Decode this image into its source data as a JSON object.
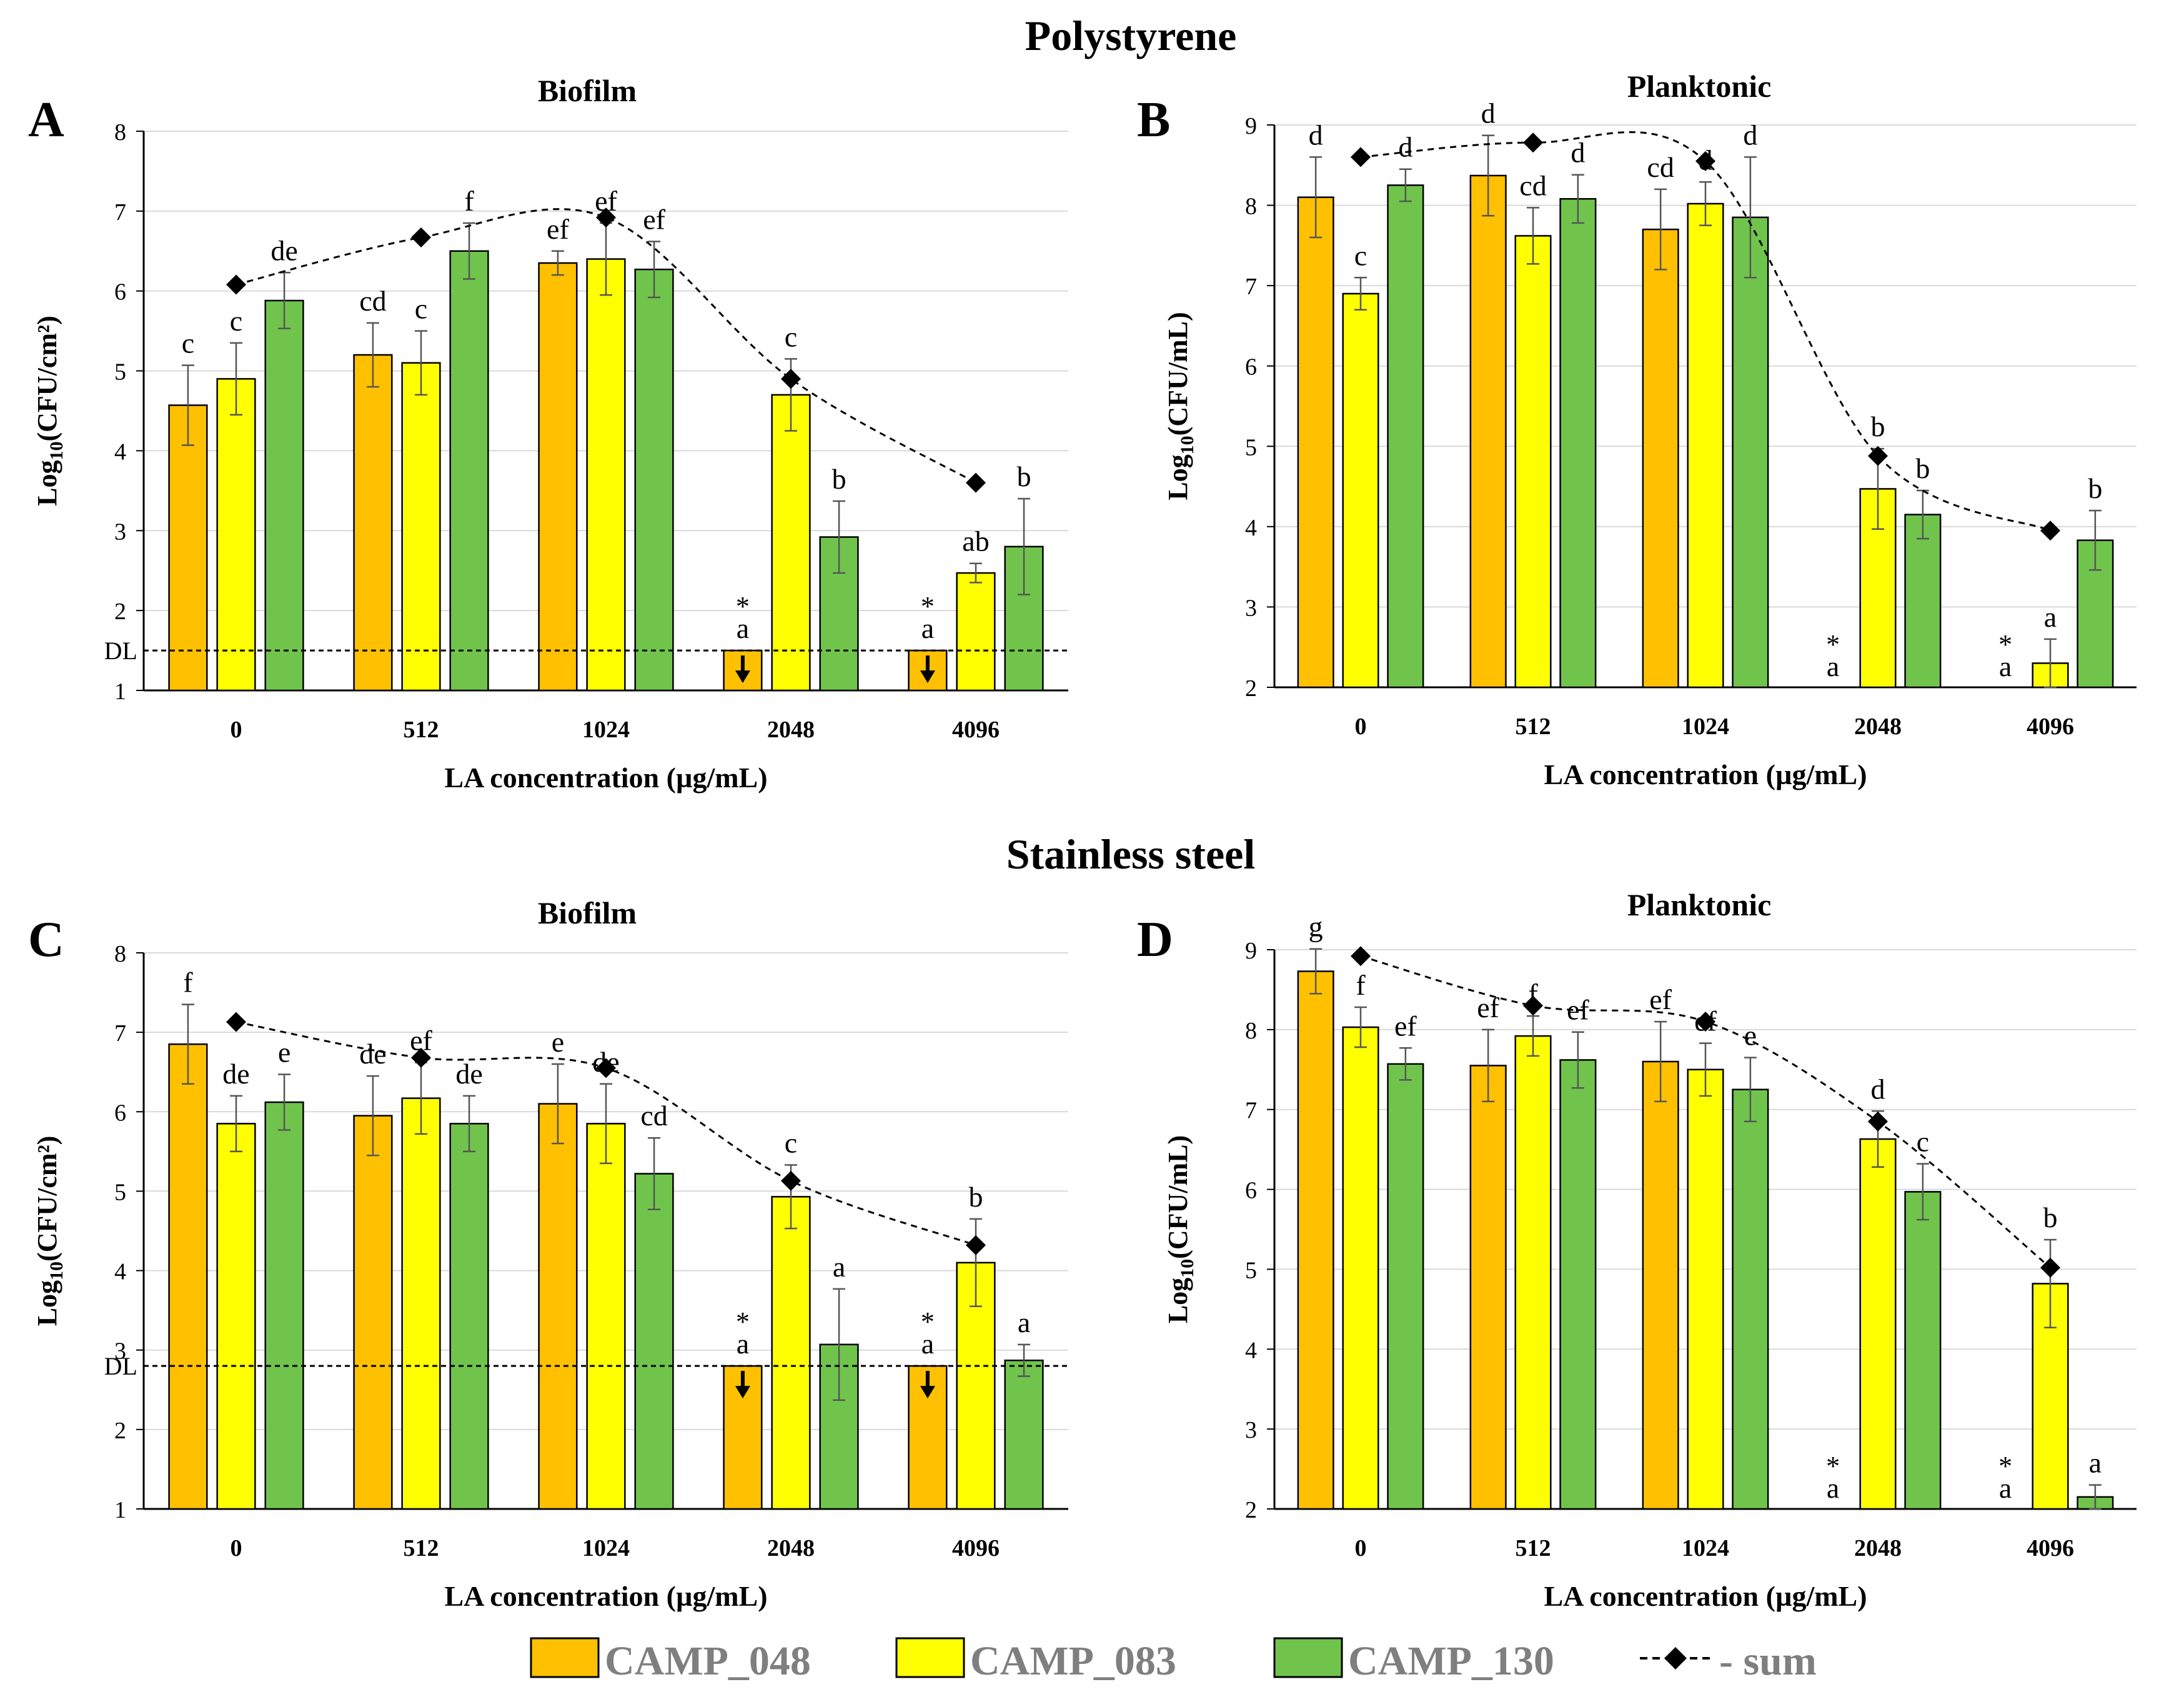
{
  "section_titles": {
    "top": "Polystyrene",
    "bottom": "Stainless steel"
  },
  "legend": {
    "items": [
      {
        "label": "CAMP_048",
        "color": "#FFC000"
      },
      {
        "label": "CAMP_083",
        "color": "#FFFF00"
      },
      {
        "label": "CAMP_130",
        "color": "#70C44C"
      },
      {
        "label": "- sum",
        "color": "#000000"
      }
    ]
  },
  "chart_data": [
    {
      "panel": "A",
      "type": "bar",
      "title": "Biofilm",
      "xlabel": "LA concentration (µg/mL)",
      "ylabel_main": "Log",
      "ylabel_sub": "10",
      "ylabel_tail": "(CFU/cm²)",
      "ylim": [
        1,
        8
      ],
      "yticks": [
        1,
        2,
        3,
        4,
        5,
        6,
        7,
        8
      ],
      "categories": [
        "0",
        "512",
        "1024",
        "2048",
        "4096"
      ],
      "series": [
        {
          "name": "CAMP_048",
          "values": [
            4.57,
            5.2,
            6.35,
            1.5,
            1.5
          ],
          "errors": [
            0.5,
            0.4,
            0.15,
            0,
            0
          ],
          "letters": [
            "c",
            "cd",
            "ef",
            "a",
            "a"
          ],
          "stars": [
            false,
            false,
            false,
            true,
            true
          ],
          "arrows": [
            false,
            false,
            false,
            true,
            true
          ]
        },
        {
          "name": "CAMP_083",
          "values": [
            4.9,
            5.1,
            6.4,
            4.7,
            2.47
          ],
          "errors": [
            0.45,
            0.4,
            0.45,
            0.45,
            0.12
          ],
          "letters": [
            "c",
            "c",
            "ef",
            "c",
            "ab"
          ],
          "stars": [
            false,
            false,
            false,
            false,
            false
          ],
          "arrows": [
            false,
            false,
            false,
            false,
            false
          ]
        },
        {
          "name": "CAMP_130",
          "values": [
            5.88,
            6.5,
            6.27,
            2.92,
            2.8
          ],
          "errors": [
            0.35,
            0.35,
            0.35,
            0.45,
            0.6
          ],
          "letters": [
            "de",
            "f",
            "ef",
            "b",
            "b"
          ],
          "stars": [
            false,
            false,
            false,
            false,
            false
          ],
          "arrows": [
            false,
            false,
            false,
            false,
            false
          ]
        }
      ],
      "sum": {
        "name": "sum",
        "values": [
          6.08,
          6.67,
          6.92,
          4.9,
          3.6
        ]
      },
      "detection_limit": {
        "label": "DL",
        "value": 1.5
      }
    },
    {
      "panel": "B",
      "type": "bar",
      "title": "Planktonic",
      "xlabel": "LA concentration (µg/mL)",
      "ylabel_main": "Log",
      "ylabel_sub": "10",
      "ylabel_tail": "(CFU/mL)",
      "ylim": [
        2,
        9
      ],
      "yticks": [
        2,
        3,
        4,
        5,
        6,
        7,
        8,
        9
      ],
      "categories": [
        "0",
        "512",
        "1024",
        "2048",
        "4096"
      ],
      "series": [
        {
          "name": "CAMP_048",
          "values": [
            8.1,
            8.37,
            7.7,
            null,
            null
          ],
          "errors": [
            0.5,
            0.5,
            0.5,
            0,
            0
          ],
          "letters": [
            "d",
            "d",
            "cd",
            "a",
            "a"
          ],
          "stars": [
            false,
            false,
            false,
            true,
            true
          ],
          "arrows": [
            false,
            false,
            false,
            false,
            false
          ]
        },
        {
          "name": "CAMP_083",
          "values": [
            6.9,
            7.62,
            8.02,
            4.47,
            2.3
          ],
          "errors": [
            0.2,
            0.35,
            0.27,
            0.5,
            0.3
          ],
          "letters": [
            "c",
            "cd",
            "d",
            "b",
            "a"
          ],
          "stars": [
            false,
            false,
            false,
            false,
            false
          ],
          "arrows": [
            false,
            false,
            false,
            false,
            false
          ]
        },
        {
          "name": "CAMP_130",
          "values": [
            8.25,
            8.08,
            7.85,
            4.15,
            3.83
          ],
          "errors": [
            0.2,
            0.3,
            0.75,
            0.3,
            0.37
          ],
          "letters": [
            "d",
            "d",
            "d",
            "b",
            "b"
          ],
          "stars": [
            false,
            false,
            false,
            false,
            false
          ],
          "arrows": [
            false,
            false,
            false,
            false,
            false
          ]
        }
      ],
      "sum": {
        "name": "sum",
        "values": [
          8.6,
          8.78,
          8.55,
          4.88,
          3.95
        ]
      },
      "detection_limit": null
    },
    {
      "panel": "C",
      "type": "bar",
      "title": "Biofilm",
      "xlabel": "LA concentration (µg/mL)",
      "ylabel_main": "Log",
      "ylabel_sub": "10",
      "ylabel_tail": "(CFU/cm²)",
      "ylim": [
        1,
        8
      ],
      "yticks": [
        1,
        2,
        3,
        4,
        5,
        6,
        7,
        8
      ],
      "categories": [
        "0",
        "512",
        "1024",
        "2048",
        "4096"
      ],
      "series": [
        {
          "name": "CAMP_048",
          "values": [
            6.85,
            5.95,
            6.1,
            2.8,
            2.8
          ],
          "errors": [
            0.5,
            0.5,
            0.5,
            0,
            0
          ],
          "letters": [
            "f",
            "de",
            "e",
            "a",
            "a"
          ],
          "stars": [
            false,
            false,
            false,
            true,
            true
          ],
          "arrows": [
            false,
            false,
            false,
            true,
            true
          ]
        },
        {
          "name": "CAMP_083",
          "values": [
            5.85,
            6.17,
            5.85,
            4.93,
            4.1
          ],
          "errors": [
            0.35,
            0.45,
            0.5,
            0.4,
            0.55
          ],
          "letters": [
            "de",
            "ef",
            "de",
            "c",
            "b"
          ],
          "stars": [
            false,
            false,
            false,
            false,
            false
          ],
          "arrows": [
            false,
            false,
            false,
            false,
            false
          ]
        },
        {
          "name": "CAMP_130",
          "values": [
            6.12,
            5.85,
            5.22,
            3.07,
            2.87
          ],
          "errors": [
            0.35,
            0.35,
            0.45,
            0.7,
            0.2
          ],
          "letters": [
            "e",
            "de",
            "cd",
            "a",
            "a"
          ],
          "stars": [
            false,
            false,
            false,
            false,
            false
          ],
          "arrows": [
            false,
            false,
            false,
            false,
            false
          ]
        }
      ],
      "sum": {
        "name": "sum",
        "values": [
          7.13,
          6.68,
          6.55,
          5.13,
          4.32
        ]
      },
      "detection_limit": {
        "label": "DL",
        "value": 2.8
      }
    },
    {
      "panel": "D",
      "type": "bar",
      "title": "Planktonic",
      "xlabel": "LA concentration (µg/mL)",
      "ylabel_main": "Log",
      "ylabel_sub": "10",
      "ylabel_tail": "(CFU/mL)",
      "ylim": [
        2,
        9
      ],
      "yticks": [
        2,
        3,
        4,
        5,
        6,
        7,
        8,
        9
      ],
      "categories": [
        "0",
        "512",
        "1024",
        "2048",
        "4096"
      ],
      "series": [
        {
          "name": "CAMP_048",
          "values": [
            8.73,
            7.55,
            7.6,
            null,
            null
          ],
          "errors": [
            0.28,
            0.45,
            0.5,
            0,
            0
          ],
          "letters": [
            "g",
            "ef",
            "ef",
            "a",
            "a"
          ],
          "stars": [
            false,
            false,
            false,
            true,
            true
          ],
          "arrows": [
            false,
            false,
            false,
            false,
            false
          ]
        },
        {
          "name": "CAMP_083",
          "values": [
            8.03,
            7.92,
            7.5,
            6.63,
            4.82
          ],
          "errors": [
            0.25,
            0.25,
            0.33,
            0.35,
            0.55
          ],
          "letters": [
            "f",
            "f",
            "ef",
            "d",
            "b"
          ],
          "stars": [
            false,
            false,
            false,
            false,
            false
          ],
          "arrows": [
            false,
            false,
            false,
            false,
            false
          ]
        },
        {
          "name": "CAMP_130",
          "values": [
            7.57,
            7.62,
            7.25,
            5.97,
            2.15
          ],
          "errors": [
            0.2,
            0.35,
            0.4,
            0.35,
            0.15
          ],
          "letters": [
            "ef",
            "ef",
            "e",
            "c",
            "a"
          ],
          "stars": [
            false,
            false,
            false,
            false,
            false
          ],
          "arrows": [
            false,
            false,
            false,
            false,
            false
          ]
        }
      ],
      "sum": {
        "name": "sum",
        "values": [
          8.92,
          8.3,
          8.1,
          6.85,
          5.02
        ]
      },
      "detection_limit": null
    }
  ]
}
